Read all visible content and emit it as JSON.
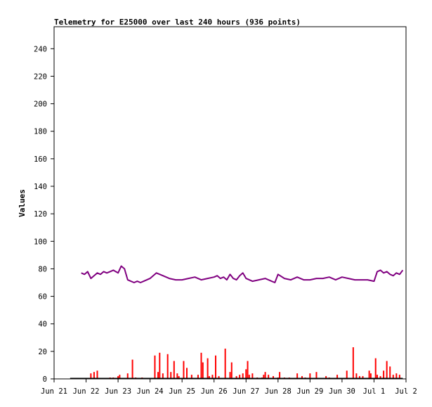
{
  "chart_data": {
    "type": "line",
    "title": "Telemetry for E25000 over last 240 hours (936 points)",
    "xlabel": "",
    "ylabel": "Values",
    "x_tick_labels": [
      "Jun 21",
      "Jun 22",
      "Jun 23",
      "Jun 24",
      "Jun 25",
      "Jun 26",
      "Jun 27",
      "Jun 28",
      "Jun 29",
      "Jun 30",
      "Jul 1",
      "Jul 2"
    ],
    "y_ticks": [
      0,
      20,
      40,
      60,
      80,
      100,
      120,
      140,
      160,
      180,
      200,
      220,
      240
    ],
    "xlim": [
      "Jun 21",
      "Jul 2"
    ],
    "ylim": [
      0,
      256
    ],
    "grid": false,
    "legend": "none",
    "series": [
      {
        "color": "#800080",
        "x_days": [
          0.85,
          0.95,
          1.05,
          1.15,
          1.25,
          1.35,
          1.45,
          1.55,
          1.65,
          1.75,
          1.85,
          2.0,
          2.1,
          2.2,
          2.3,
          2.4,
          2.5,
          2.6,
          2.7,
          2.8,
          2.9,
          3.0,
          3.2,
          3.4,
          3.6,
          3.8,
          4.0,
          4.2,
          4.4,
          4.6,
          4.8,
          5.0,
          5.1,
          5.2,
          5.3,
          5.4,
          5.5,
          5.6,
          5.7,
          5.8,
          5.9,
          6.0,
          6.2,
          6.4,
          6.6,
          6.8,
          6.9,
          7.0,
          7.2,
          7.4,
          7.6,
          7.8,
          8.0,
          8.2,
          8.4,
          8.6,
          8.8,
          9.0,
          9.2,
          9.4,
          9.6,
          9.8,
          10.0,
          10.1,
          10.2,
          10.3,
          10.4,
          10.5,
          10.6,
          10.7,
          10.8,
          10.9
        ],
        "values": [
          77,
          76,
          78,
          73,
          75,
          77,
          76,
          78,
          77,
          78,
          79,
          77,
          82,
          80,
          72,
          71,
          70,
          71,
          70,
          71,
          72,
          73,
          77,
          75,
          73,
          72,
          72,
          73,
          74,
          72,
          73,
          74,
          75,
          73,
          74,
          72,
          76,
          73,
          72,
          75,
          77,
          73,
          71,
          72,
          73,
          71,
          70,
          76,
          73,
          72,
          74,
          72,
          72,
          73,
          73,
          74,
          72,
          74,
          73,
          72,
          72,
          72,
          71,
          78,
          79,
          77,
          78,
          76,
          75,
          77,
          76,
          79
        ],
        "name": ""
      },
      {
        "color": "#ff0000",
        "type": "bar",
        "x_days": [
          1.15,
          1.25,
          1.35,
          1.75,
          1.85,
          2.0,
          2.05,
          2.3,
          2.45,
          2.55,
          2.75,
          3.15,
          3.25,
          3.3,
          3.4,
          3.55,
          3.65,
          3.75,
          3.85,
          3.9,
          4.05,
          4.15,
          4.3,
          4.5,
          4.6,
          4.65,
          4.8,
          4.85,
          4.95,
          5.05,
          5.15,
          5.35,
          5.5,
          5.55,
          5.7,
          5.8,
          5.9,
          6.0,
          6.05,
          6.1,
          6.2,
          6.35,
          6.5,
          6.55,
          6.6,
          6.7,
          6.85,
          7.0,
          7.05,
          7.2,
          7.35,
          7.6,
          7.75,
          7.85,
          8.0,
          8.2,
          8.5,
          8.6,
          8.85,
          9.15,
          9.35,
          9.45,
          9.55,
          9.65,
          9.85,
          9.9,
          10.05,
          10.1,
          10.2,
          10.3,
          10.4,
          10.5,
          10.6,
          10.7,
          10.8
        ],
        "values": [
          4,
          5,
          6,
          1,
          1,
          2,
          3,
          4,
          14,
          1,
          1,
          17,
          5,
          19,
          4,
          18,
          5,
          13,
          4,
          2,
          13,
          8,
          3,
          3,
          19,
          12,
          15,
          2,
          3,
          17,
          2,
          22,
          5,
          12,
          2,
          3,
          4,
          7,
          13,
          3,
          4,
          1,
          1,
          3,
          5,
          3,
          2,
          1,
          5,
          1,
          1,
          4,
          2,
          1,
          4,
          5,
          2,
          1,
          3,
          6,
          23,
          4,
          2,
          2,
          6,
          4,
          15,
          3,
          2,
          6,
          13,
          9,
          3,
          4,
          3
        ],
        "name": ""
      },
      {
        "color": "#000000",
        "x_days": [
          0.5,
          10.9
        ],
        "values": [
          0.4,
          0.4
        ],
        "name": ""
      }
    ]
  }
}
